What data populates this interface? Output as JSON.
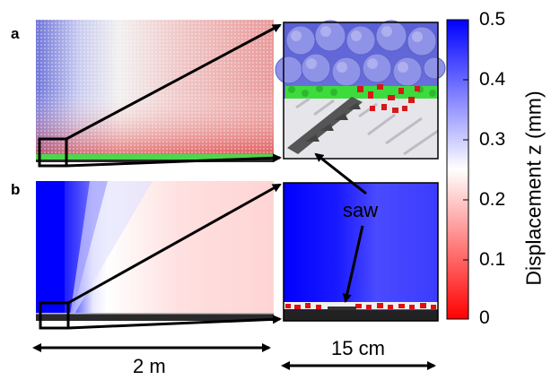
{
  "panels": {
    "a": "a",
    "b": "b"
  },
  "annotations": {
    "saw": "saw",
    "scale_left": "2 m",
    "scale_right": "15 cm"
  },
  "colorbar": {
    "title": "Displacement z (mm)",
    "ticks": [
      "0.5",
      "0.4",
      "0.3",
      "0.2",
      "0.1",
      "0"
    ],
    "colors": {
      "top": "#0000ff",
      "middle": "#ffffff",
      "bottom": "#ff0000"
    }
  }
}
